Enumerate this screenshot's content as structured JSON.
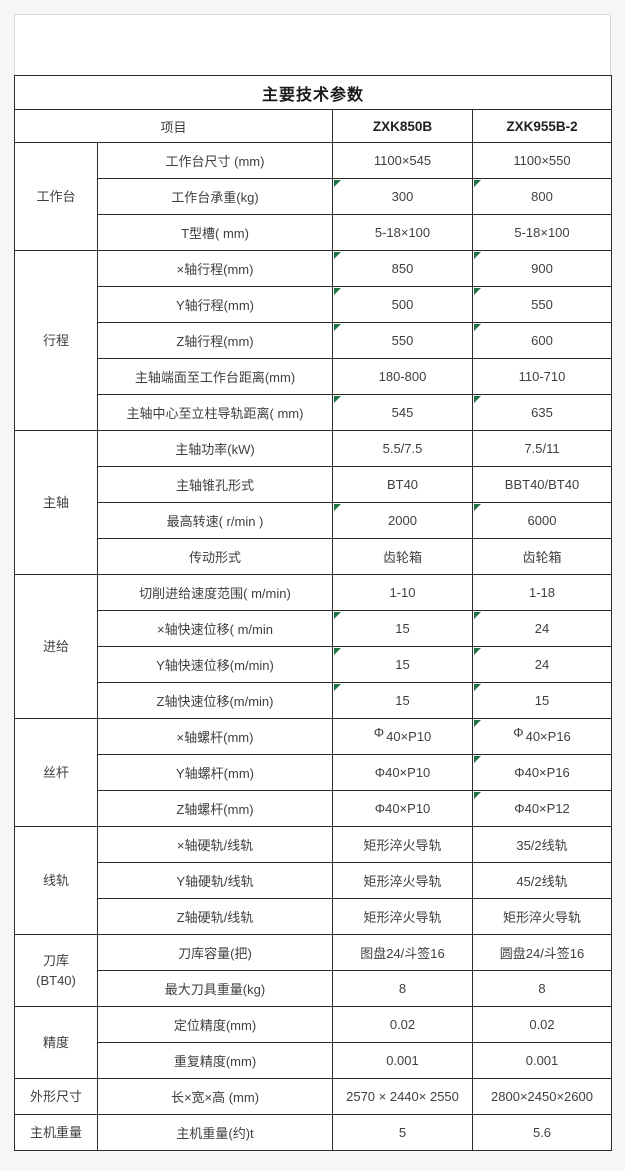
{
  "table": {
    "title": "主要技术参数",
    "header": {
      "item": "项目",
      "models": [
        "ZXK850B",
        "ZXK955B-2"
      ]
    },
    "marker_color": "#217346",
    "groups": [
      {
        "label": "工作台",
        "rows": [
          {
            "item": "工作台尺寸 (mm)",
            "values": [
              {
                "text": "1100×545"
              },
              {
                "text": "1100×550"
              }
            ]
          },
          {
            "item": "工作台承重(kg)",
            "values": [
              {
                "text": "300",
                "tri": true
              },
              {
                "text": "800",
                "tri": true
              }
            ]
          },
          {
            "item": "T型槽( mm)",
            "values": [
              {
                "text": "5-18×100"
              },
              {
                "text": "5-18×100"
              }
            ]
          }
        ]
      },
      {
        "label": "行程",
        "rows": [
          {
            "item": "×轴行程(mm)",
            "values": [
              {
                "text": "850",
                "tri": true
              },
              {
                "text": "900",
                "tri": true
              }
            ]
          },
          {
            "item": "Y轴行程(mm)",
            "values": [
              {
                "text": "500",
                "tri": true
              },
              {
                "text": "550",
                "tri": true
              }
            ]
          },
          {
            "item": "Z轴行程(mm)",
            "values": [
              {
                "text": "550",
                "tri": true
              },
              {
                "text": "600",
                "tri": true
              }
            ]
          },
          {
            "item": "主轴端面至工作台距离(mm)",
            "values": [
              {
                "text": "180-800"
              },
              {
                "text": "110-710"
              }
            ]
          },
          {
            "item": "主轴中心至立柱导轨距离( mm)",
            "values": [
              {
                "text": "545",
                "tri": true
              },
              {
                "text": "635",
                "tri": true
              }
            ]
          }
        ]
      },
      {
        "label": "主轴",
        "rows": [
          {
            "item": "主轴功率(kW)",
            "values": [
              {
                "text": "5.5/7.5"
              },
              {
                "text": "7.5/11"
              }
            ]
          },
          {
            "item": "主轴锥孔形式",
            "values": [
              {
                "text": "BT40"
              },
              {
                "text": "BBT40/BT40"
              }
            ]
          },
          {
            "item": "最高转速( r/min )",
            "values": [
              {
                "text": "2000",
                "tri": true
              },
              {
                "text": "6000",
                "tri": true
              }
            ]
          },
          {
            "item": "传动形式",
            "values": [
              {
                "text": "齿轮箱"
              },
              {
                "text": "齿轮箱"
              }
            ]
          }
        ]
      },
      {
        "label": "进给",
        "rows": [
          {
            "item": "切削进给速度范围( m/min)",
            "values": [
              {
                "text": "1-10"
              },
              {
                "text": "1-18"
              }
            ]
          },
          {
            "item": "×轴快速位移( m/min",
            "values": [
              {
                "text": "15",
                "tri": true
              },
              {
                "text": "24",
                "tri": true
              }
            ]
          },
          {
            "item": "Y轴快速位移(m/min)",
            "values": [
              {
                "text": "15",
                "tri": true
              },
              {
                "text": "24",
                "tri": true
              }
            ]
          },
          {
            "item": "Z轴快速位移(m/min)",
            "values": [
              {
                "text": "15",
                "tri": true
              },
              {
                "text": "15",
                "tri": true
              }
            ]
          }
        ]
      },
      {
        "label": "丝杆",
        "rows": [
          {
            "item": "×轴螺杆(mm)",
            "values": [
              {
                "text": "Φ40×P10",
                "phi": true
              },
              {
                "text": "Φ40×P16",
                "phi": true,
                "tri": true
              }
            ]
          },
          {
            "item": "Y轴螺杆(mm)",
            "values": [
              {
                "text": "Φ40×P10"
              },
              {
                "text": "Φ40×P16",
                "tri": true
              }
            ]
          },
          {
            "item": "Z轴螺杆(mm)",
            "values": [
              {
                "text": "Φ40×P10"
              },
              {
                "text": "Φ40×P12",
                "tri": true
              }
            ]
          }
        ]
      },
      {
        "label": "线轨",
        "rows": [
          {
            "item": "×轴硬轨/线轨",
            "values": [
              {
                "text": "矩形淬火导轨"
              },
              {
                "text": "35/2线轨"
              }
            ]
          },
          {
            "item": "Y轴硬轨/线轨",
            "values": [
              {
                "text": "矩形淬火导轨"
              },
              {
                "text": "45/2线轨"
              }
            ]
          },
          {
            "item": "Z轴硬轨/线轨",
            "values": [
              {
                "text": "矩形淬火导轨"
              },
              {
                "text": "矩形淬火导轨"
              }
            ]
          }
        ]
      },
      {
        "label": "刀库\n(BT40)",
        "rows": [
          {
            "item": "刀库容量(把)",
            "values": [
              {
                "text": "图盘24/斗签16"
              },
              {
                "text": "圆盘24/斗签16"
              }
            ]
          },
          {
            "item": "最大刀具重量(kg)",
            "values": [
              {
                "text": "8"
              },
              {
                "text": "8"
              }
            ]
          }
        ]
      },
      {
        "label": "精度",
        "rows": [
          {
            "item": "定位精度(mm)",
            "values": [
              {
                "text": "0.02"
              },
              {
                "text": "0.02"
              }
            ]
          },
          {
            "item": "重复精度(mm)",
            "values": [
              {
                "text": "0.001"
              },
              {
                "text": "0.001"
              }
            ]
          }
        ]
      },
      {
        "label": "外形尺寸",
        "rows": [
          {
            "item": "长×宽×高 (mm)",
            "values": [
              {
                "text": "2570 × 2440× 2550"
              },
              {
                "text": "2800×2450×2600"
              }
            ]
          }
        ]
      },
      {
        "label": "主机重量",
        "rows": [
          {
            "item": "主机重量(约)t",
            "values": [
              {
                "text": "5"
              },
              {
                "text": "5.6"
              }
            ]
          }
        ]
      }
    ]
  }
}
